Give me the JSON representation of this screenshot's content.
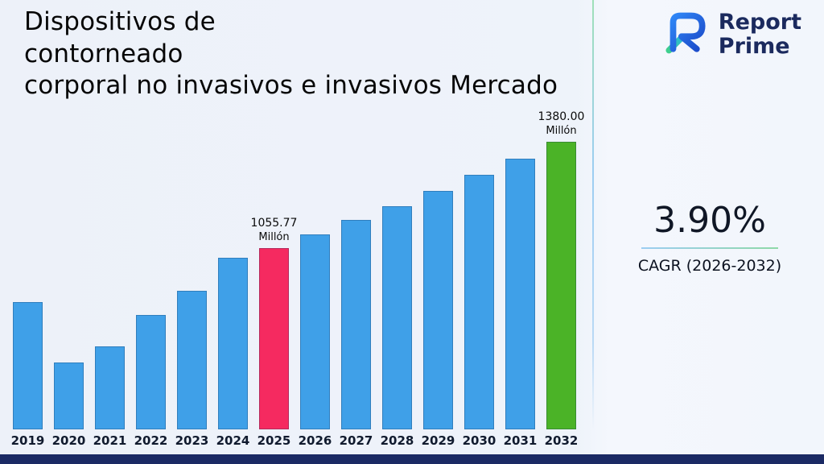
{
  "title": {
    "lines": [
      "Dispositivos de",
      "contorneado",
      "corporal no invasivos e invasivos Mercado"
    ]
  },
  "logo": {
    "line1": "Report",
    "line2": "Prime"
  },
  "stat": {
    "value": "3.90%",
    "label": "CAGR (2026-2032)"
  },
  "chart_data": {
    "type": "bar",
    "title": "Dispositivos de contorneado corporal no invasivos e invasivos Mercado",
    "unit": "Millón",
    "categories": [
      "2019",
      "2020",
      "2021",
      "2022",
      "2023",
      "2024",
      "2025",
      "2026",
      "2027",
      "2028",
      "2029",
      "2030",
      "2031",
      "2032"
    ],
    "values": [
      890,
      705,
      755,
      850,
      925,
      1025,
      1055.77,
      1097,
      1140,
      1184,
      1230,
      1278,
      1328,
      1380
    ],
    "annotations": [
      {
        "category": "2025",
        "lines": [
          "1055.77",
          "Millón"
        ]
      },
      {
        "category": "2032",
        "lines": [
          "1380.00",
          "Millón"
        ]
      }
    ],
    "bar_colors": {
      "default": "#3fa0e8",
      "2025": "#f52a60",
      "2032": "#4bb327"
    },
    "ylim": [
      500,
      1380
    ],
    "grid": false,
    "legend": "none"
  },
  "colors": {
    "accent_blue": "#3fa0e8",
    "accent_pink": "#f52a60",
    "accent_green": "#4bb327",
    "navy": "#1b2a64"
  }
}
